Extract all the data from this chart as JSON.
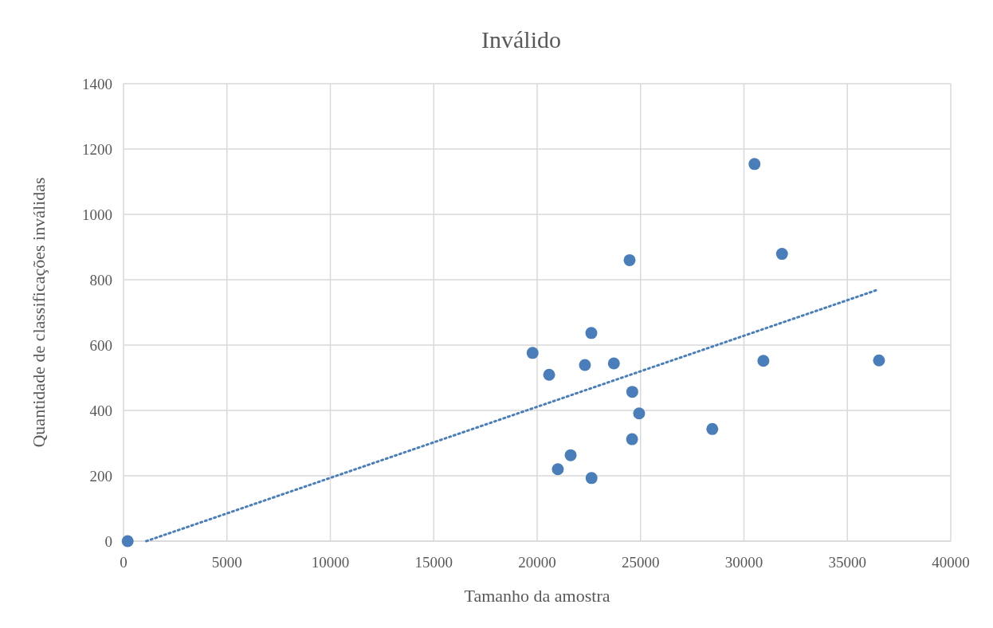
{
  "chart_data": {
    "type": "scatter",
    "title": "Inválido",
    "xlabel": "Tamanho da amostra",
    "ylabel": "Quantidade de classificações inválidas",
    "xlim": [
      0,
      40000
    ],
    "xticks": [
      0,
      5000,
      10000,
      15000,
      20000,
      25000,
      30000,
      35000,
      40000
    ],
    "ylim": [
      0,
      1400
    ],
    "yticks": [
      0,
      200,
      400,
      600,
      800,
      1000,
      1200,
      1400
    ],
    "grid": true,
    "series": [
      {
        "color": "#4a7ebb",
        "marker": "circle",
        "x": [
          200,
          19780,
          20580,
          21000,
          21620,
          22310,
          22620,
          22630,
          23710,
          24470,
          24590,
          24600,
          24930,
          28470,
          30510,
          30940,
          31840,
          36530
        ],
        "values": [
          0,
          576,
          509,
          220,
          263,
          539,
          637,
          193,
          544,
          860,
          312,
          457,
          391,
          343,
          1154,
          552,
          879,
          553
        ]
      },
      {
        "type": "line",
        "color": "#4a7ebb",
        "line_style": "dotted",
        "x": [
          1100,
          36500
        ],
        "values": [
          0,
          770
        ]
      }
    ]
  }
}
